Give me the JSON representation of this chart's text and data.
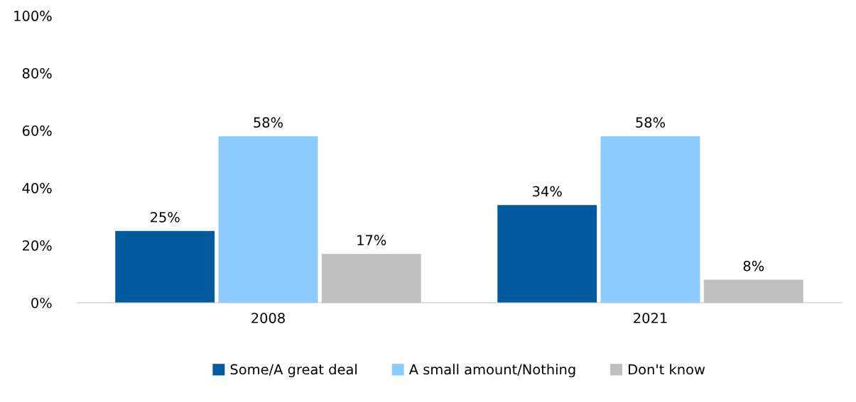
{
  "chart_data": {
    "type": "bar",
    "categories": [
      "2008",
      "2021"
    ],
    "series": [
      {
        "name": "Some/A great deal",
        "color": "#005a9e",
        "values": [
          25,
          34
        ],
        "value_labels": [
          "25%",
          "34%"
        ]
      },
      {
        "name": "A small amount/Nothing",
        "color": "#8ccbff",
        "values": [
          58,
          58
        ],
        "value_labels": [
          "58%",
          "58%"
        ]
      },
      {
        "name": "Don't know",
        "color": "#bfbfbf",
        "values": [
          17,
          8
        ],
        "value_labels": [
          "17%",
          "8%"
        ]
      }
    ],
    "ylim": [
      0,
      100
    ],
    "yticks": [
      {
        "value": 0,
        "label": "0%"
      },
      {
        "value": 20,
        "label": "20%"
      },
      {
        "value": 40,
        "label": "40%"
      },
      {
        "value": 60,
        "label": "60%"
      },
      {
        "value": 80,
        "label": "80%"
      },
      {
        "value": 100,
        "label": "100%"
      }
    ],
    "grid": false,
    "legend": "bottom"
  }
}
